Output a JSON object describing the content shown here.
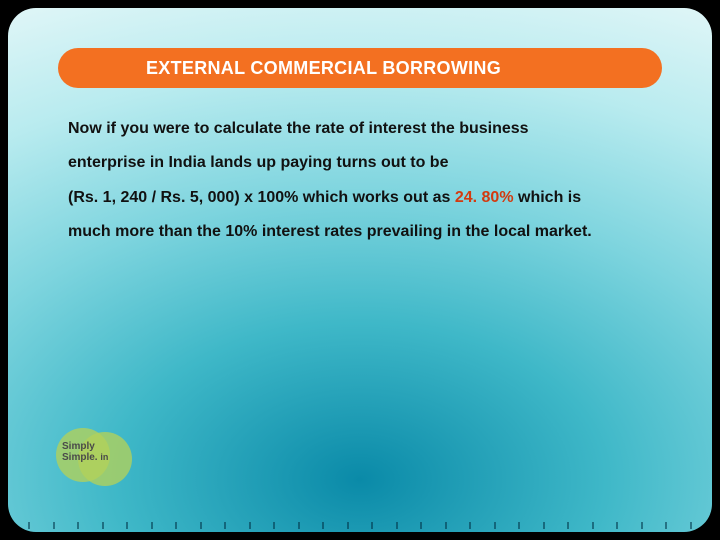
{
  "colors": {
    "title_bg": "#f37021",
    "title_text": "#ffffff",
    "body_text": "#111111",
    "highlight": "#d33a0f",
    "logo_circle": "#b2d15a"
  },
  "title": "EXTERNAL COMMERCIAL BORROWING",
  "body": {
    "line1": "Now if you were to calculate the rate of interest the business",
    "line2": "enterprise in India lands up paying turns out to be",
    "line3_a": "(Rs. 1, 240 / Rs. 5, 000) x 100% which works out as ",
    "line3_hl": "24. 80%",
    "line3_b": " which is",
    "line4": "much more than the 10% interest rates prevailing in the local market."
  },
  "logo": {
    "line1": "Simply",
    "line2": "Simple.",
    "suffix": "in"
  }
}
